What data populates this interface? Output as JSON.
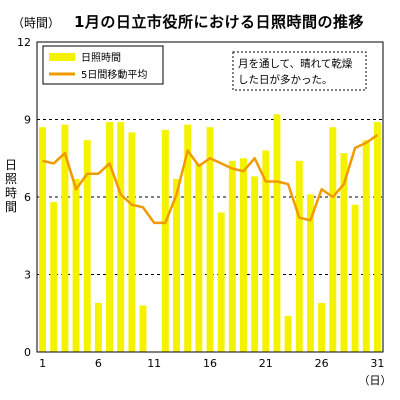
{
  "header": {
    "unit_label": "（時間）",
    "title": "1月の日立市役所における日照時間の推移"
  },
  "chart_data": {
    "type": "bar",
    "title": "1月の日立市役所における日照時間の推移",
    "y_unit": "（時間）",
    "ylabel": "日照時間",
    "x_unit": "（日）",
    "ylim": [
      0,
      12
    ],
    "yticks": [
      0,
      3,
      6,
      9,
      12
    ],
    "xticks": [
      1,
      6,
      11,
      16,
      21,
      26,
      31
    ],
    "gridlines": [
      3,
      6,
      9
    ],
    "x": [
      1,
      2,
      3,
      4,
      5,
      6,
      7,
      8,
      9,
      10,
      11,
      12,
      13,
      14,
      15,
      16,
      17,
      18,
      19,
      20,
      21,
      22,
      23,
      24,
      25,
      26,
      27,
      28,
      29,
      30,
      31
    ],
    "series": [
      {
        "name": "日照時間",
        "type": "bar",
        "color": "#f5f200",
        "values": [
          8.7,
          5.8,
          8.8,
          6.7,
          8.2,
          1.9,
          8.9,
          8.9,
          8.5,
          1.8,
          0,
          8.6,
          6.7,
          8.8,
          7.3,
          8.7,
          5.4,
          7.4,
          7.5,
          6.8,
          7.8,
          9.2,
          1.4,
          7.4,
          6.1,
          1.9,
          8.7,
          7.7,
          5.7,
          8.2,
          8.9
        ]
      },
      {
        "name": "5日間移動平均",
        "type": "line",
        "color": "#f09a00",
        "values": [
          7.4,
          7.3,
          7.7,
          6.3,
          6.9,
          6.9,
          7.3,
          6.1,
          5.7,
          5.6,
          5.0,
          5.0,
          6.1,
          7.8,
          7.2,
          7.5,
          7.3,
          7.1,
          7.0,
          7.5,
          6.6,
          6.6,
          6.5,
          5.2,
          5.1,
          6.3,
          6.0,
          6.5,
          7.9,
          8.1,
          8.4
        ]
      }
    ],
    "legend": {
      "placement": "top-left",
      "items": [
        "日照時間",
        "5日間移動平均"
      ]
    },
    "annotation": {
      "line1": "月を通して、晴れて乾燥",
      "line2": "した日が多かった。"
    }
  }
}
